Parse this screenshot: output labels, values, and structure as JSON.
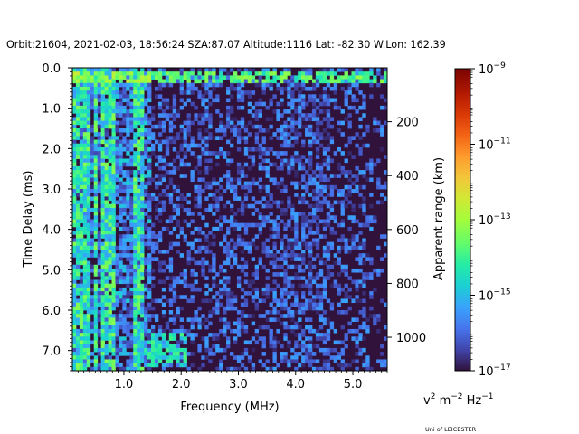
{
  "figure": {
    "title": "Orbit:21604, 2021-02-03, 18:56:24 SZA:87.07 Altitude:1116 Lat: -82.30 W.Lon: 162.39",
    "footer": "Uni of LEICESTER"
  },
  "chart_data": {
    "type": "heatmap",
    "title": "Orbit:21604, 2021-02-03, 18:56:24 SZA:87.07 Altitude:1116 Lat: -82.30 W.Lon: 162.39",
    "xlabel": "Frequency (MHz)",
    "ylabel": "Time Delay (ms)",
    "y2label": "Apparent range (km)",
    "xlim": [
      0.1,
      5.6
    ],
    "ylim": [
      7.5,
      0.0
    ],
    "y_inverted": true,
    "x_ticks": [
      1.0,
      2.0,
      3.0,
      4.0,
      5.0
    ],
    "x_tick_labels": [
      "1.0",
      "2.0",
      "3.0",
      "4.0",
      "5.0"
    ],
    "y_ticks": [
      0.0,
      1.0,
      2.0,
      3.0,
      4.0,
      5.0,
      6.0,
      7.0
    ],
    "y_tick_labels": [
      "0.0",
      "1.0",
      "2.0",
      "3.0",
      "4.0",
      "5.0",
      "6.0",
      "7.0"
    ],
    "y2_ticks_km": [
      200,
      400,
      600,
      800,
      1000
    ],
    "y2_tick_labels": [
      "200",
      "400",
      "600",
      "800",
      "1000"
    ],
    "y2_range_km": [
      0,
      1124
    ],
    "colorbar": {
      "scale": "log",
      "vmin": 1e-17,
      "vmax": 1e-09,
      "ticks": [
        {
          "mantissa": "10",
          "exp": "−9",
          "value": 1e-09
        },
        {
          "mantissa": "10",
          "exp": "−11",
          "value": 1e-11
        },
        {
          "mantissa": "10",
          "exp": "−13",
          "value": 1e-13
        },
        {
          "mantissa": "10",
          "exp": "−15",
          "value": 1e-15
        },
        {
          "mantissa": "10",
          "exp": "−17",
          "value": 1e-17
        }
      ],
      "units": {
        "v": "v",
        "v_exp": "2",
        "m": " m",
        "m_exp": "−2",
        "hz": " Hz",
        "hz_exp": "−1"
      },
      "colormap": "turbo"
    },
    "grid": false,
    "features": {
      "background_log_value": -17,
      "surface_echo_delay_ms": 0.2,
      "bright_vertical_bands_mhz": [
        0.15,
        0.25,
        0.35,
        0.5,
        0.65,
        0.8,
        1.2,
        1.3
      ],
      "noise_region_mhz": [
        0.1,
        5.6
      ],
      "high_band_mhz": [
        3.8,
        4.6
      ]
    }
  }
}
